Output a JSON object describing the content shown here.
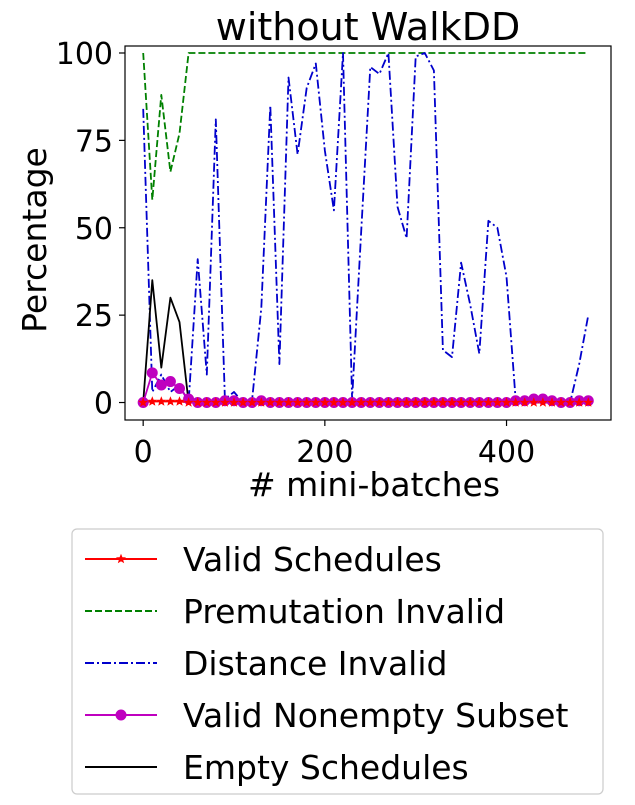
{
  "chart_data": {
    "type": "line",
    "title": "without WalkDD",
    "xlabel": "# mini-batches",
    "ylabel": "Percentage",
    "xlim": [
      -20,
      515
    ],
    "ylim": [
      -5,
      102
    ],
    "xticks": [
      0,
      200,
      400
    ],
    "yticks": [
      0,
      25,
      50,
      75,
      100
    ],
    "x": [
      0,
      10,
      20,
      30,
      40,
      50,
      60,
      70,
      80,
      90,
      100,
      110,
      120,
      130,
      140,
      150,
      160,
      170,
      180,
      190,
      200,
      210,
      220,
      230,
      240,
      250,
      260,
      270,
      280,
      290,
      300,
      310,
      320,
      330,
      340,
      350,
      360,
      370,
      380,
      390,
      400,
      410,
      420,
      430,
      440,
      450,
      460,
      470,
      480,
      490
    ],
    "legend_placement": "below",
    "series": [
      {
        "name": "Valid Schedules",
        "color": "#ff0000",
        "linestyle": "solid",
        "marker": "star",
        "values": [
          0,
          0.3,
          0.3,
          0.3,
          0.3,
          0,
          0,
          0,
          0,
          0,
          0,
          0,
          0,
          0,
          0,
          0,
          0,
          0,
          0,
          0,
          0,
          0,
          0,
          0,
          0,
          0,
          0,
          0,
          0,
          0,
          0,
          0,
          0,
          0,
          0,
          0,
          0,
          0,
          0,
          0,
          0,
          0,
          0,
          0,
          0,
          0,
          0,
          0,
          0,
          0
        ]
      },
      {
        "name": "Premutation Invalid",
        "color": "#008000",
        "linestyle": "dashed",
        "marker": "none",
        "values": [
          100,
          58,
          88,
          66,
          77,
          100,
          100,
          100,
          100,
          100,
          100,
          100,
          100,
          100,
          100,
          100,
          100,
          100,
          100,
          100,
          100,
          100,
          100,
          100,
          100,
          100,
          100,
          100,
          100,
          100,
          100,
          100,
          100,
          100,
          100,
          100,
          100,
          100,
          100,
          100,
          100,
          100,
          100,
          100,
          100,
          100,
          100,
          100,
          100,
          100
        ]
      },
      {
        "name": "Distance Invalid",
        "color": "#0000cc",
        "linestyle": "dashdot",
        "marker": "none",
        "values": [
          84,
          3,
          8,
          3,
          5,
          0,
          41,
          8,
          81,
          1,
          3,
          0,
          1,
          27,
          85,
          11,
          93,
          71,
          90,
          97,
          72,
          55,
          100,
          1,
          49,
          96,
          94,
          100,
          56,
          47,
          99,
          100,
          95,
          15,
          13,
          40,
          28,
          14,
          52,
          50,
          36,
          1,
          0,
          0,
          0,
          0,
          0,
          0,
          11,
          25
        ]
      },
      {
        "name": "Valid Nonempty Subset",
        "color": "#bf00bf",
        "linestyle": "solid",
        "marker": "circle",
        "values": [
          0,
          8.5,
          5,
          6,
          4,
          1,
          0,
          0,
          0,
          0.5,
          0.5,
          0,
          0,
          0.5,
          0,
          0,
          0,
          0,
          0,
          0,
          0,
          0,
          0,
          0,
          0,
          0,
          0,
          0,
          0,
          0,
          0,
          0,
          0,
          0,
          0,
          0,
          0,
          0,
          0,
          0,
          0,
          0.5,
          0.5,
          1,
          1,
          0.5,
          0,
          0,
          0.5,
          0.5
        ]
      },
      {
        "name": "Empty Schedules",
        "color": "#000000",
        "linestyle": "solid",
        "marker": "none",
        "values": [
          0,
          35,
          10,
          30,
          23,
          0,
          0,
          0,
          0,
          0,
          0,
          0,
          0,
          0,
          0,
          0,
          0,
          0,
          0,
          0,
          0,
          0,
          0,
          0,
          0,
          0,
          0,
          0,
          0,
          0,
          0,
          0,
          0,
          0,
          0,
          0,
          0,
          0,
          0,
          0,
          0,
          0,
          0,
          0,
          0,
          0,
          0,
          0,
          0,
          0
        ]
      }
    ]
  }
}
